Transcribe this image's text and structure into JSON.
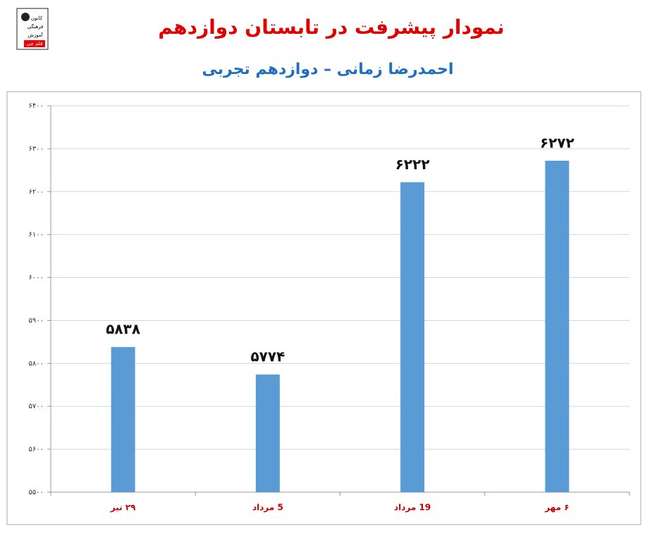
{
  "chart_data": {
    "type": "bar",
    "title": "نمودار پیشرفت در تابستان دوازدهم",
    "subtitle": "احمدرضا زمانی – دوازدهم تجربی",
    "annotations": [
      "کانون",
      "فرهنگی",
      "آموزش",
      "قلم چی"
    ],
    "categories": [
      "۲۹ تیر",
      "5 مرداد",
      "19 مرداد",
      "۶ مهر"
    ],
    "values": [
      5838,
      5774,
      6222,
      6272
    ],
    "value_labels": [
      "۵۸۳۸",
      "۵۷۷۴",
      "۶۲۲۲",
      "۶۲۷۲"
    ],
    "color": "#5b9bd5",
    "ylim": [
      5500,
      6400
    ],
    "yticks": [
      {
        "value": 5500,
        "label": "۵۵۰۰"
      },
      {
        "value": 5600,
        "label": "۵۶۰۰"
      },
      {
        "value": 5700,
        "label": "۵۷۰۰"
      },
      {
        "value": 5800,
        "label": "۵۸۰۰"
      },
      {
        "value": 5900,
        "label": "۵۹۰۰"
      },
      {
        "value": 6000,
        "label": "۶۰۰۰"
      },
      {
        "value": 6100,
        "label": "۶۱۰۰"
      },
      {
        "value": 6200,
        "label": "۶۲۰۰"
      },
      {
        "value": 6300,
        "label": "۶۳۰۰"
      },
      {
        "value": 6400,
        "label": "۶۴۰۰"
      }
    ],
    "grid": true
  }
}
